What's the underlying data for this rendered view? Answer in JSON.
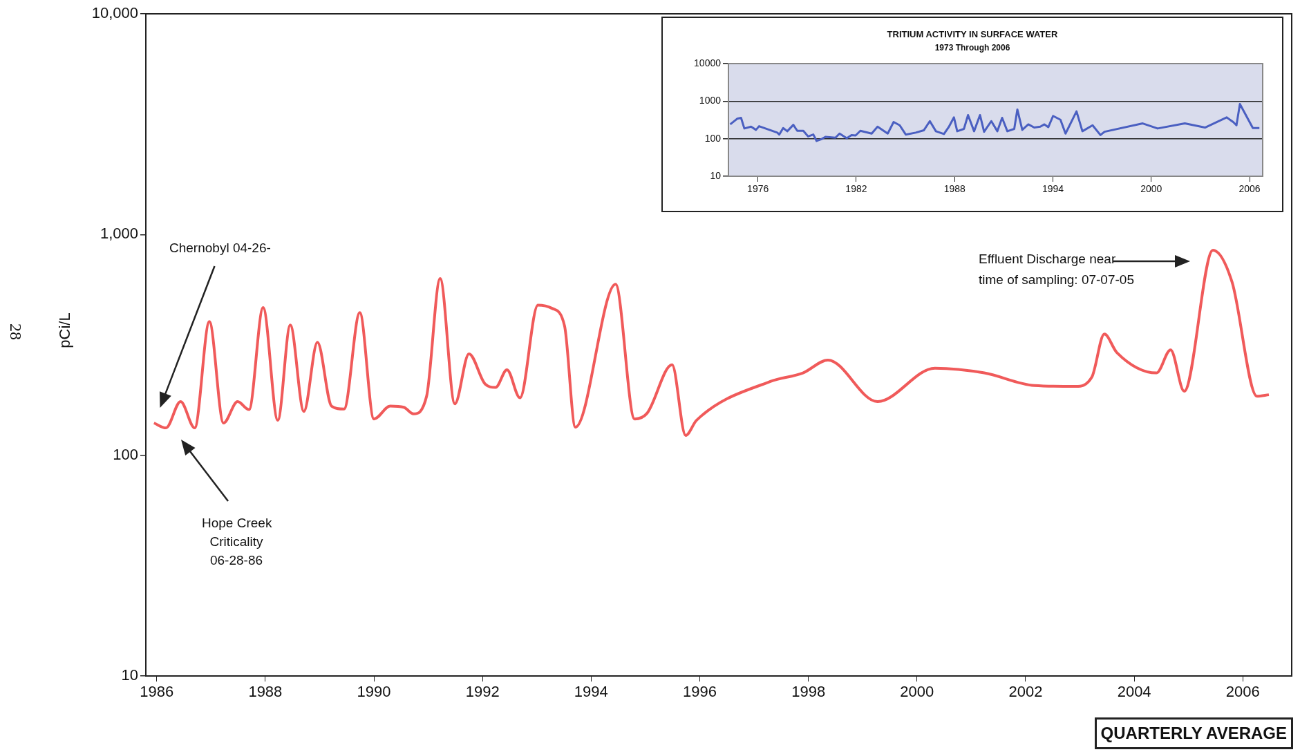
{
  "chart_data": [
    {
      "type": "line",
      "ylabel": "pCi/L",
      "log": "y",
      "xlim": [
        1985.8,
        2006.9
      ],
      "xticks": [
        1986,
        1988,
        1990,
        1992,
        1994,
        1996,
        1998,
        2000,
        2002,
        2004,
        2006
      ],
      "ylim": [
        10,
        10000
      ],
      "yticks": [
        {
          "value": 10,
          "label": "10"
        },
        {
          "value": 100,
          "label": "100"
        },
        {
          "value": 1000,
          "label": "1,000"
        },
        {
          "value": 10000,
          "label": "10,000"
        }
      ],
      "x": [
        1985.95,
        1986.17,
        1986.44,
        1986.7,
        1986.97,
        1987.23,
        1987.49,
        1987.7,
        1987.96,
        1988.23,
        1988.46,
        1988.71,
        1988.96,
        1989.22,
        1989.45,
        1989.74,
        1990.0,
        1990.3,
        1990.55,
        1990.73,
        1990.97,
        1991.22,
        1991.49,
        1991.75,
        1992.05,
        1992.24,
        1992.45,
        1992.69,
        1993.02,
        1993.28,
        1993.51,
        1993.71,
        1994.45,
        1994.8,
        1995.03,
        1995.49,
        1995.74,
        1995.94,
        1997.3,
        1997.9,
        1998.36,
        1999.27,
        2000.33,
        2001.24,
        2002.16,
        2002.92,
        2003.22,
        2003.45,
        2003.68,
        2004.41,
        2004.67,
        2004.92,
        2005.45,
        2005.8,
        2006.26,
        2006.48
      ],
      "series": [
        {
          "color": "#f05a5a",
          "values": [
            140,
            133,
            175,
            133,
            403,
            140,
            175,
            161,
            467,
            144,
            389,
            158,
            325,
            167,
            162,
            443,
            146,
            167,
            165,
            154,
            185,
            632,
            171,
            288,
            210,
            203,
            244,
            182,
            479,
            463,
            386,
            134,
            595,
            146,
            155,
            257,
            123,
            144,
            216,
            236,
            270,
            175,
            248,
            236,
            207,
            205,
            226,
            354,
            292,
            236,
            300,
            195,
            849,
            611,
            185,
            188
          ]
        }
      ],
      "annotations": [
        "Chernobyl 04-26-",
        "Hope Creek\nCriticality\n06-28-86",
        "Effluent Discharge near\ntime of sampling: 07-07-05",
        "28",
        "QUARTERLY AVERAGE"
      ]
    },
    {
      "type": "line",
      "title": "TRITIUM ACTIVITY IN SURFACE WATER",
      "subtitle": "1973 Through 2006",
      "log": "y",
      "grid": "y",
      "xlim": [
        1974.2,
        2006.8
      ],
      "xticks": [
        1976,
        1982,
        1988,
        1994,
        2000,
        2006
      ],
      "ylim": [
        10,
        10000
      ],
      "yticks": [
        10,
        100,
        1000,
        10000
      ],
      "x": [
        1974.31,
        1974.73,
        1974.97,
        1975.17,
        1975.58,
        1975.88,
        1976.07,
        1977.18,
        1977.3,
        1977.54,
        1977.79,
        1978.16,
        1978.4,
        1978.77,
        1979.06,
        1979.38,
        1979.58,
        1979.87,
        1980.12,
        1980.73,
        1980.98,
        1981.42,
        1981.71,
        1981.96,
        1982.25,
        1982.94,
        1983.3,
        1983.92,
        1984.28,
        1984.65,
        1985.02,
        1985.63,
        1986.12,
        1986.49,
        1986.86,
        1987.35,
        1987.64,
        1987.96,
        1988.16,
        1988.57,
        1988.82,
        1989.19,
        1989.55,
        1989.8,
        1990.24,
        1990.61,
        1990.9,
        1991.22,
        1991.64,
        1991.83,
        1992.13,
        1992.5,
        1992.86,
        1993.23,
        1993.48,
        1993.72,
        1994.01,
        1994.46,
        1994.77,
        1995.44,
        1995.8,
        1996.42,
        1996.9,
        1997.15,
        1999.48,
        2000.39,
        2002.05,
        2003.28,
        2004.6,
        2005.0,
        2005.2,
        2005.41,
        2006.2,
        2006.6
      ],
      "series": [
        {
          "color": "#4a5fc1",
          "values": [
            241,
            340,
            360,
            187,
            209,
            172,
            215,
            145,
            129,
            192,
            158,
            234,
            162,
            162,
            115,
            129,
            87,
            97,
            112,
            106,
            137,
            103,
            125,
            122,
            162,
            137,
            209,
            137,
            278,
            228,
            129,
            145,
            167,
            294,
            158,
            133,
            203,
            370,
            158,
            182,
            426,
            158,
            426,
            153,
            294,
            158,
            360,
            158,
            182,
            599,
            172,
            241,
            198,
            209,
            241,
            203,
            403,
            320,
            137,
            534,
            158,
            228,
            125,
            153,
            255,
            187,
            255,
            198,
            370,
            278,
            228,
            840,
            192,
            192
          ]
        }
      ]
    }
  ]
}
